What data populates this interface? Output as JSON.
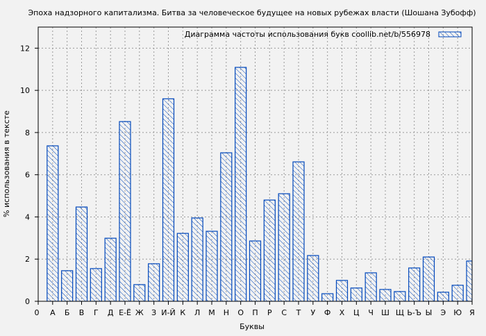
{
  "chart_data": {
    "type": "bar",
    "title": "Эпоха надзорного капитализма. Битва за человеческое будущее на новых рубежах власти (Шошана Зубофф)",
    "xlabel": "Буквы",
    "ylabel": "% использования в тексте",
    "legend": {
      "label": "Диаграмма частоты использования букв  coollib.net/b/556978",
      "placement": "top-right"
    },
    "x_origin_label": "0",
    "categories": [
      "А",
      "Б",
      "В",
      "Г",
      "Д",
      "Е-Ё",
      "Ж",
      "З",
      "И-Й",
      "К",
      "Л",
      "М",
      "Н",
      "О",
      "П",
      "Р",
      "С",
      "Т",
      "У",
      "Ф",
      "Х",
      "Ц",
      "Ч",
      "Ш",
      "Щ",
      "Ь-Ъ",
      "Ы",
      "Э",
      "Ю",
      "Я"
    ],
    "values": [
      7.37,
      1.45,
      4.47,
      1.55,
      2.99,
      8.52,
      0.79,
      1.78,
      9.6,
      3.22,
      3.95,
      3.32,
      7.04,
      11.09,
      2.86,
      4.8,
      5.1,
      6.61,
      2.17,
      0.36,
      0.99,
      0.63,
      1.35,
      0.56,
      0.46,
      1.58,
      2.1,
      0.43,
      0.76,
      1.91
    ],
    "ylim": [
      0,
      13
    ],
    "yticks": [
      0,
      2,
      4,
      6,
      8,
      10,
      12
    ],
    "grid": true,
    "bar_color": "#0047bb",
    "fill": "diagonal-hatch"
  }
}
